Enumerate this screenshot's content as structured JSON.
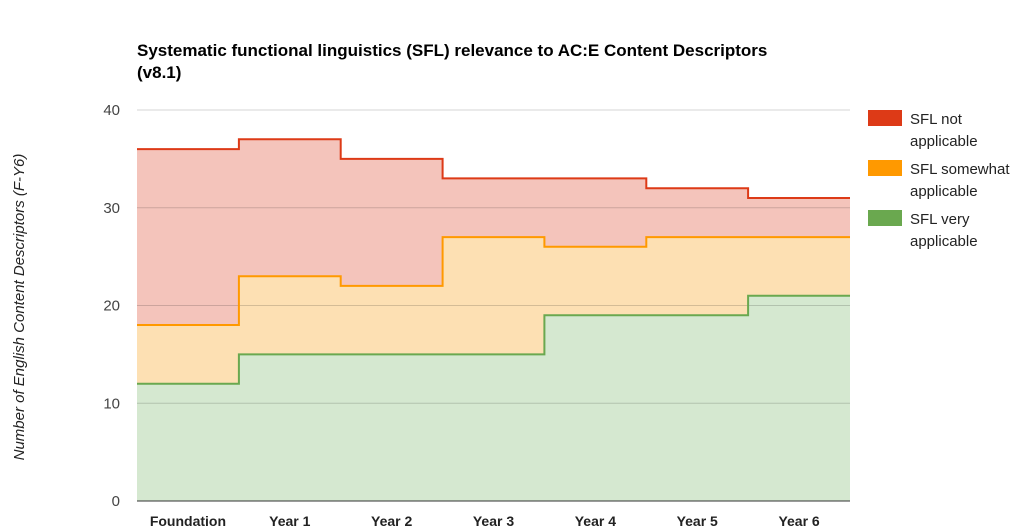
{
  "chart_data": {
    "type": "area",
    "step": true,
    "stacked": true,
    "title_line1": "Systematic functional linguistics (SFL) relevance to AC:E Content Descriptors",
    "title_line2": "(v8.1)",
    "xlabel": "",
    "ylabel": "Number of English Content Descriptors (F-Y6)",
    "ylim": [
      0,
      40
    ],
    "yticks": [
      "0",
      "10",
      "20",
      "30",
      "40"
    ],
    "grid": true,
    "legend_position": "right",
    "categories": [
      "Foundation",
      "Year 1",
      "Year 2",
      "Year 3",
      "Year 4",
      "Year 5",
      "Year 6"
    ],
    "series": [
      {
        "name_line1": "SFL very",
        "name_line2": "applicable",
        "values": [
          12,
          15,
          15,
          15,
          19,
          19,
          21
        ],
        "line_color": "#6aa84f",
        "fill_color": "#d5e8d0"
      },
      {
        "name_line1": "SFL somewhat",
        "name_line2": "applicable",
        "values": [
          6,
          8,
          7,
          12,
          7,
          8,
          6
        ],
        "line_color": "#ff9900",
        "fill_color": "#fde0b3"
      },
      {
        "name_line1": "SFL not",
        "name_line2": "applicable",
        "values": [
          18,
          14,
          13,
          6,
          7,
          5,
          4
        ],
        "line_color": "#dd3a17",
        "fill_color": "#f4c4bb"
      }
    ]
  }
}
